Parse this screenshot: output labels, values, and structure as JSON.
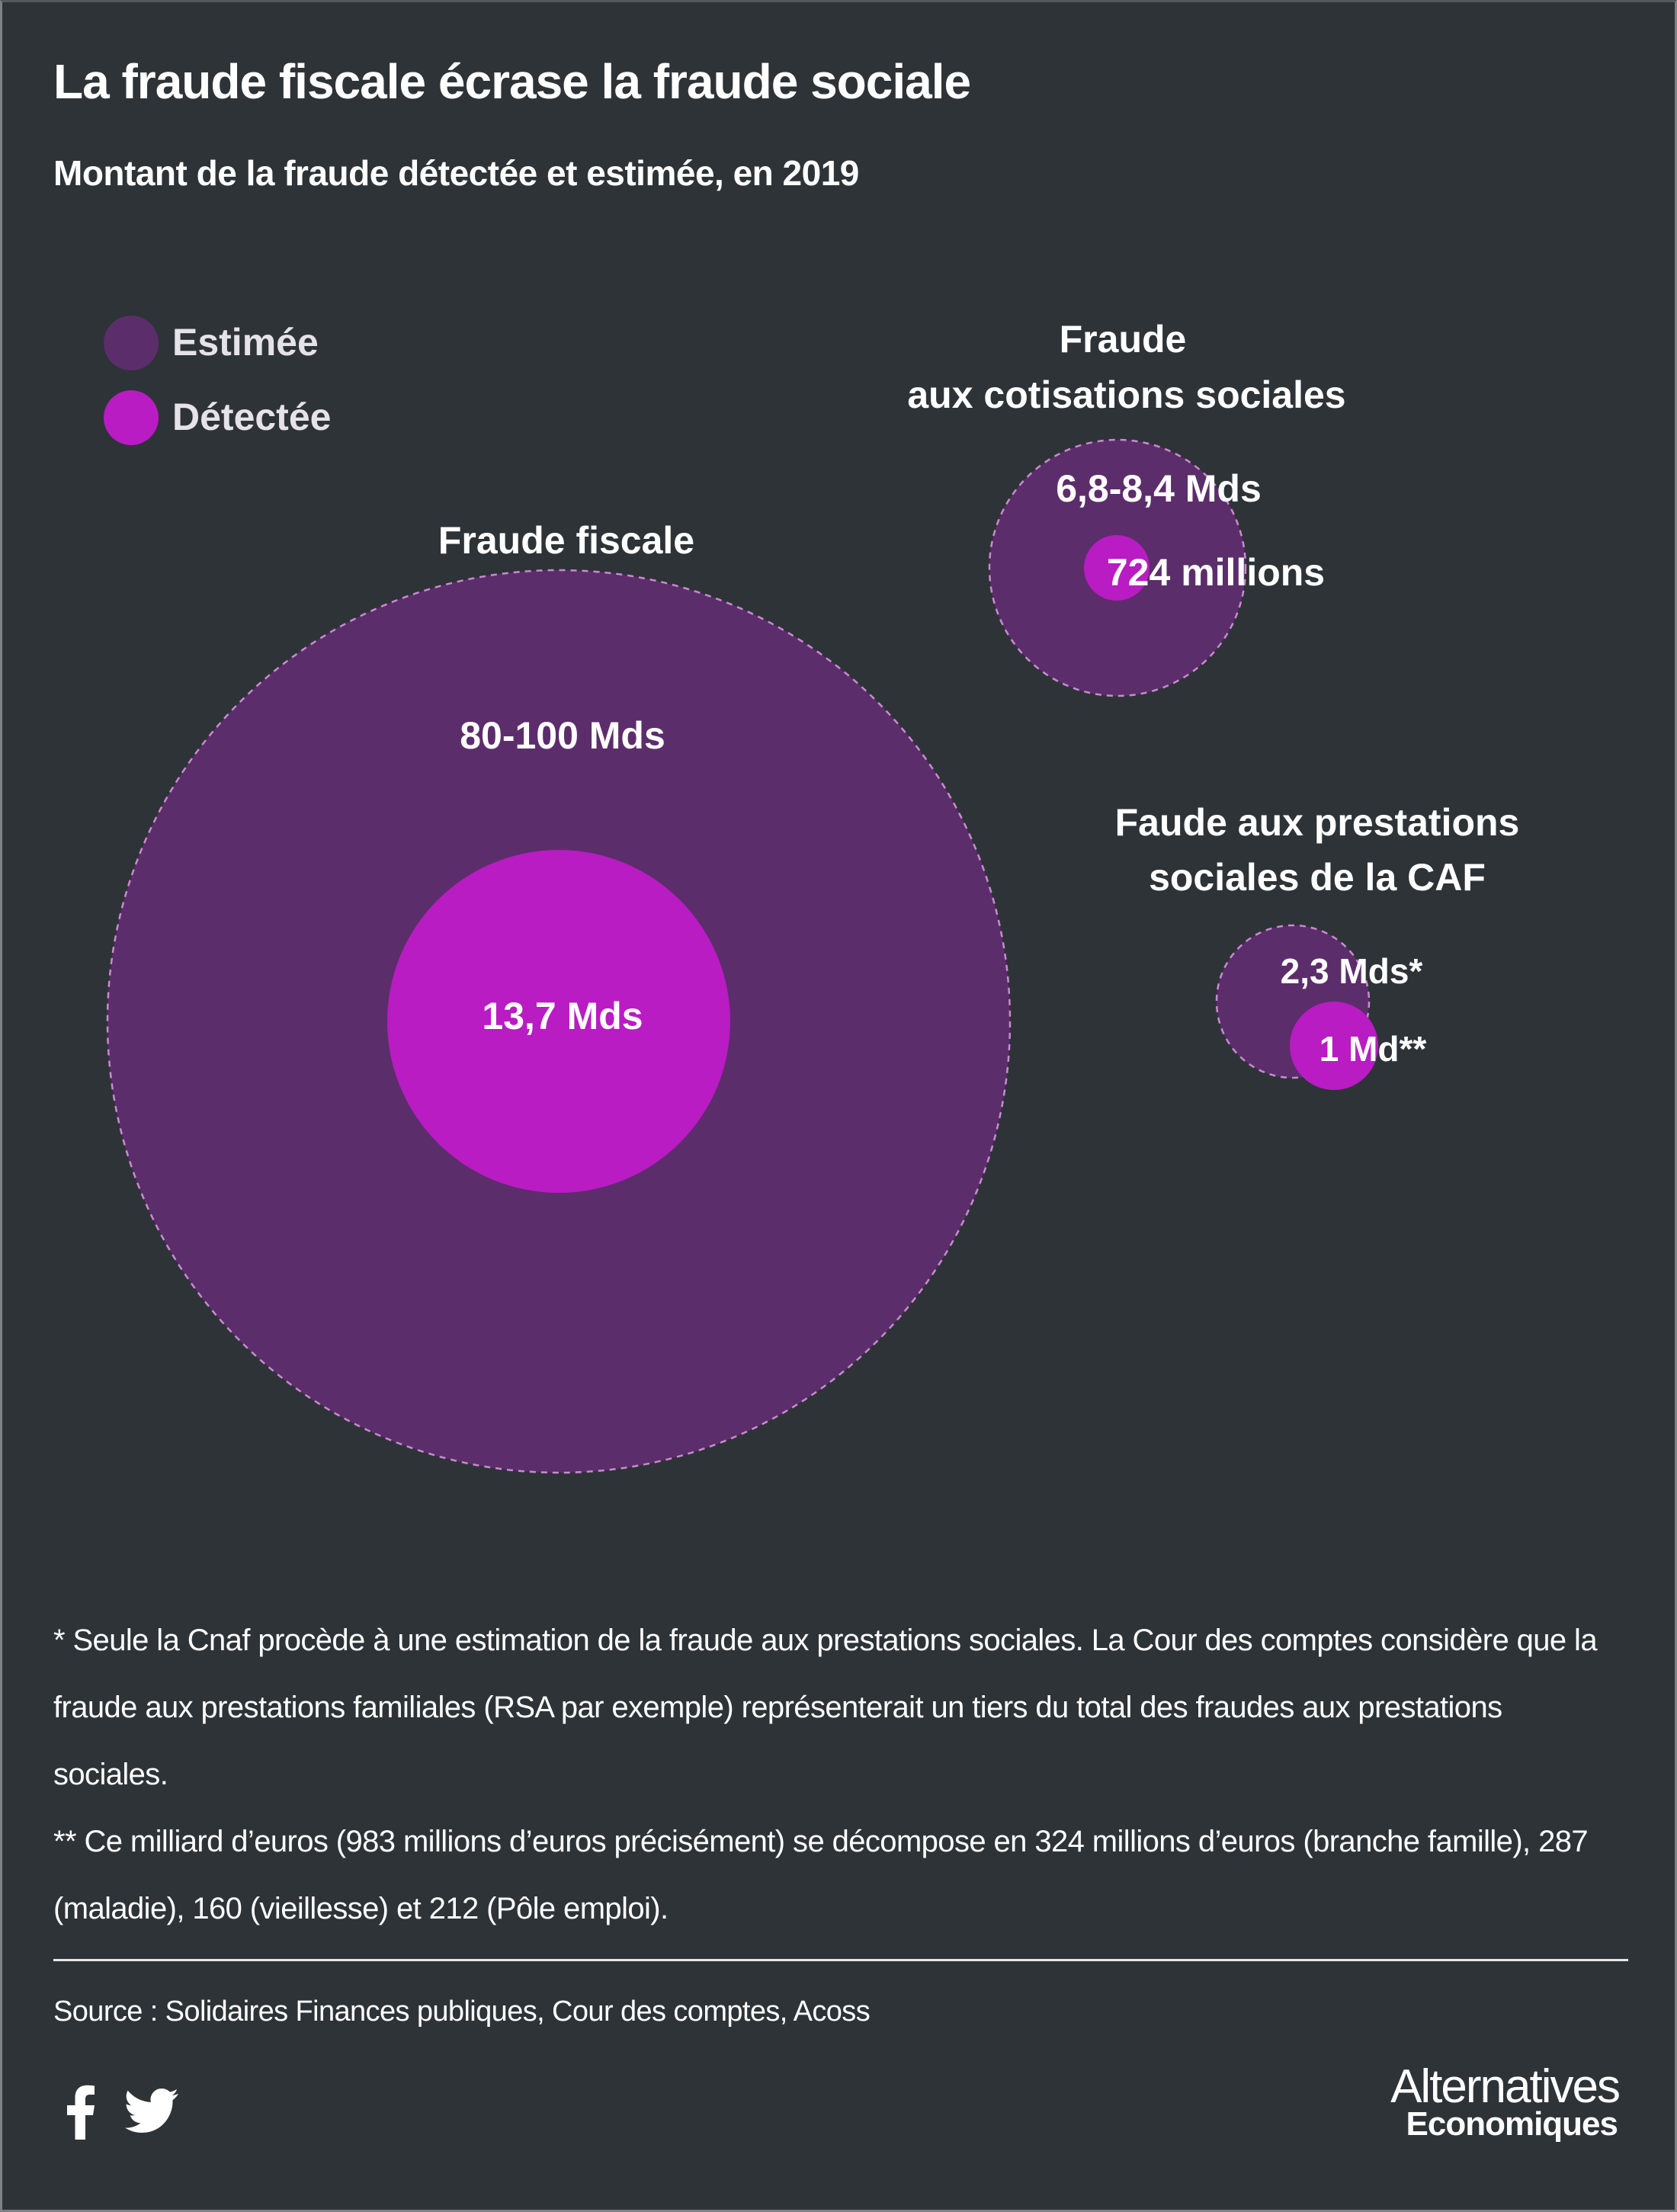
{
  "header": {
    "title": "La fraude fiscale écrase la fraude sociale",
    "subtitle": "Montant de la fraude détectée et estimée, en 2019"
  },
  "colors": {
    "background": "#2e3337",
    "estimated": "#5c2d6b",
    "detected": "#b81cc2",
    "text": "#ffffff"
  },
  "chart_data": {
    "type": "bubble",
    "legend": {
      "position": "top-left",
      "items": [
        {
          "label": "Estimée",
          "color": "#5c2d6b"
        },
        {
          "label": "Détectée",
          "color": "#b81cc2"
        }
      ]
    },
    "groups": [
      {
        "name": "Fraude fiscale",
        "estimated": {
          "label": "80-100 Mds",
          "value_min_eur_bn": 80,
          "value_max_eur_bn": 100
        },
        "detected": {
          "label": "13,7 Mds",
          "value_eur_bn": 13.7
        }
      },
      {
        "name_line1": "Fraude",
        "name_line2": "aux cotisations sociales",
        "estimated": {
          "label": "6,8-8,4 Mds",
          "value_min_eur_bn": 6.8,
          "value_max_eur_bn": 8.4
        },
        "detected": {
          "label": "724 millions",
          "value_eur_bn": 0.724
        }
      },
      {
        "name_line1": "Faude aux prestations",
        "name_line2": "sociales de la CAF",
        "estimated": {
          "label": "2,3 Mds*",
          "value_eur_bn": 2.3
        },
        "detected": {
          "label": "1 Md**",
          "value_eur_bn": 1
        }
      }
    ]
  },
  "notes": {
    "note1": "* Seule la Cnaf procède à une estimation de la fraude aux prestations sociales. La Cour des comptes considère que la fraude aux prestations familiales (RSA par exemple) représenterait un tiers du total des fraudes aux prestations sociales.",
    "note2": "** Ce milliard d’euros (983 millions d’euros précisément) se décompose en 324 millions d’euros (branche famille), 287 (maladie), 160 (vieillesse) et 212 (Pôle emploi)."
  },
  "source": "Source : Solidaires Finances publiques, Cour des comptes, Acoss",
  "social_icons": [
    "facebook-icon",
    "twitter-icon"
  ],
  "logo": {
    "line1": "Alternatives",
    "line2": "Economiques"
  }
}
